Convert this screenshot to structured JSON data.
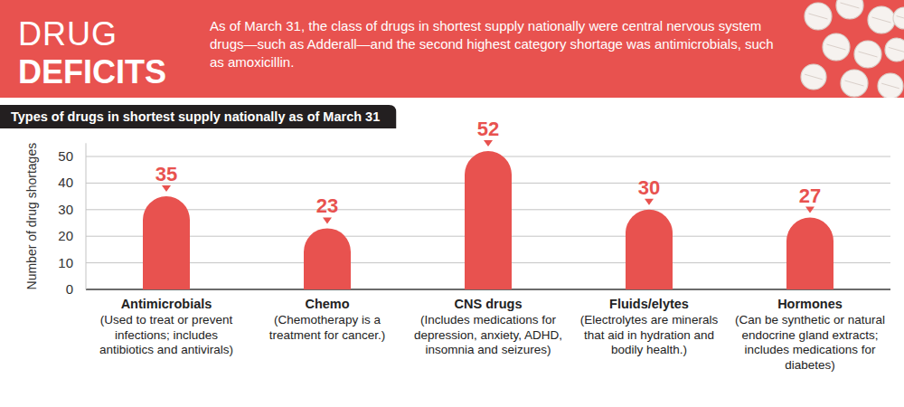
{
  "chart_data": {
    "type": "bar",
    "title": "DRUG DEFICITS",
    "subtitle": "As of March 31, the class of drugs in shortest supply nationally were central nervous system drugs—such as Adderall—and the second highest category shortage was antimicrobials, such as amoxicillin.",
    "heading": "Types of drugs in shortest supply nationally as of March 31",
    "y_label": "Number of drug shortages",
    "categories": [
      "Antimicrobials",
      "Chemo",
      "CNS drugs",
      "Fluids/elytes",
      "Hormones"
    ],
    "descriptions": [
      "(Used to treat or prevent infections; includes antibiotics and antivirals)",
      "(Chemotherapy is a treatment for cancer.)",
      "(Includes medications for depression, anxiety, ADHD, insomnia and seizures)",
      "(Electrolytes are minerals that aid in hydration and bodily health.)",
      "(Can be synthetic or natural endocrine gland extracts; includes medications for diabetes)"
    ],
    "values": [
      35,
      23,
      52,
      30,
      27
    ],
    "color": "#e8524f",
    "ylim": [
      0,
      55
    ],
    "yticks": [
      0,
      10,
      20,
      30,
      40,
      50
    ],
    "grid": true,
    "data_labels": true
  }
}
